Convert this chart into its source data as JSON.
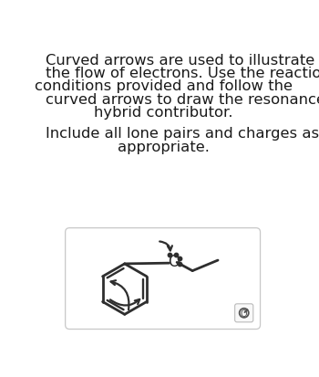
{
  "background_color": "#ffffff",
  "box_color": "#ffffff",
  "box_edge_color": "#c8c8c8",
  "text_color": "#1a1a1a",
  "line_color": "#2e2e2e",
  "title_lines": [
    "Curved arrows are used to illustrate",
    "the flow of electrons. Use the reaction",
    "conditions provided and follow the",
    "curved arrows to draw the resonance",
    "hybrid contributor."
  ],
  "subtitle_lines": [
    "Include all lone pairs and charges as",
    "appropriate."
  ],
  "title_fontsize": 11.8,
  "subtitle_fontsize": 11.8,
  "fig_width": 3.5,
  "fig_height": 4.14
}
